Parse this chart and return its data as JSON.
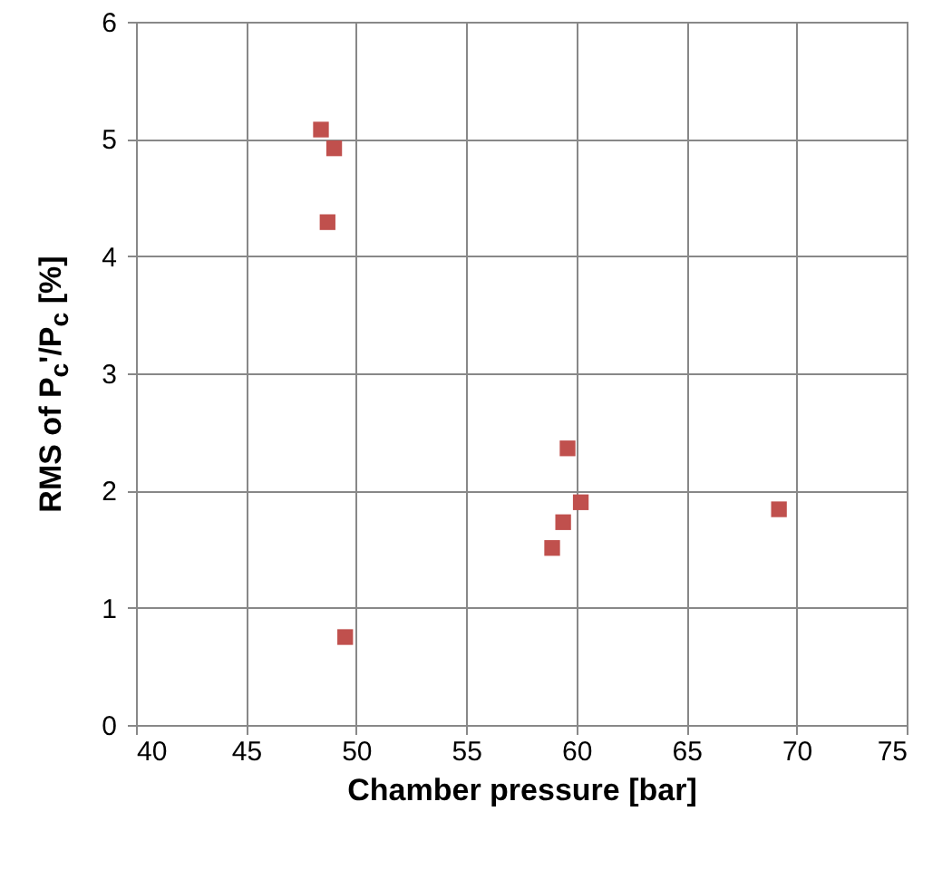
{
  "chart_data": {
    "type": "scatter",
    "xlabel": "Chamber pressure [bar]",
    "ylabel": "RMS of P$_{c}$'/P$_{c}$ [%]",
    "x": [
      48.4,
      49.0,
      48.7,
      49.5,
      59.6,
      60.2,
      59.4,
      58.9,
      69.2
    ],
    "series": [
      {
        "color": "#c0504d",
        "values": [
          5.08,
          4.92,
          4.29,
          0.75,
          2.36,
          1.9,
          1.73,
          1.51,
          1.84
        ]
      }
    ],
    "xlim": [
      40,
      75
    ],
    "xticks": [
      40,
      45,
      50,
      55,
      60,
      65,
      70,
      75
    ],
    "ylim": [
      0,
      6
    ],
    "yticks": [
      0,
      1,
      2,
      3,
      4,
      5,
      6
    ],
    "grid": true,
    "marker": "square"
  }
}
